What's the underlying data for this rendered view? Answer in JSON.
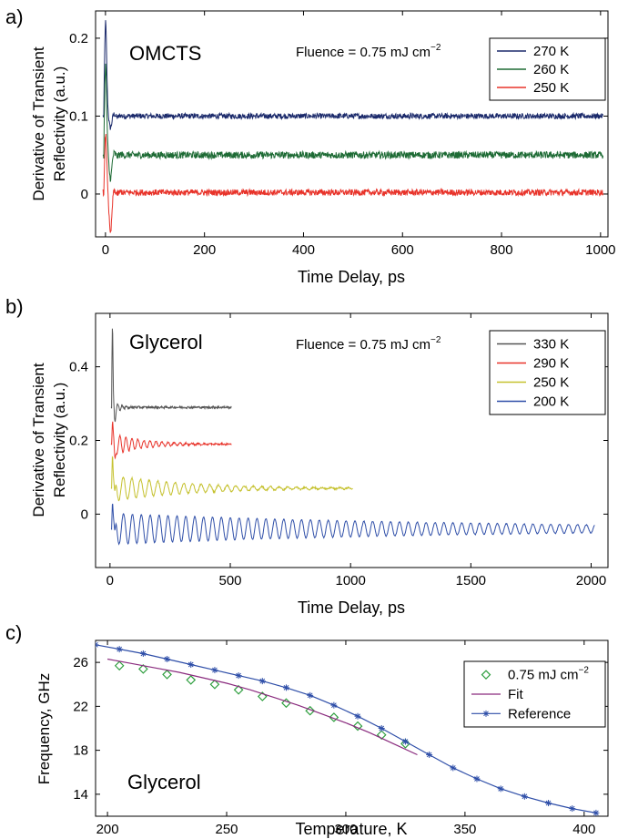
{
  "chart_data": [
    {
      "panel_label": "a)",
      "type": "line",
      "annotation_sample": "OMCTS",
      "annotation_fluence": "Fluence = 0.75 mJ cm",
      "annotation_fluence_exp": "−2",
      "xlabel": "Time Delay, ps",
      "ylabel": [
        "Derivative  of Transient",
        "Reflectivity  (a.u.)"
      ],
      "xlim": [
        -20,
        1015
      ],
      "ylim": [
        -0.055,
        0.235
      ],
      "xticks": [
        0,
        200,
        400,
        600,
        800,
        1000
      ],
      "yticks": [
        0,
        0.1,
        0.2
      ],
      "ytick_labels": [
        "0",
        "0.1",
        "0.2"
      ],
      "legend_position": "top-right",
      "series": [
        {
          "name": "270 K",
          "color": "#1b2a6b",
          "baseline": 0.1,
          "xstart": -5,
          "xend": 1005,
          "peak": 0.22,
          "trough": 0.09,
          "osc_amp": 0.012,
          "period": 14,
          "decay": 12,
          "noise": 0.0035
        },
        {
          "name": "260 K",
          "color": "#1e6b35",
          "baseline": 0.05,
          "xstart": -5,
          "xend": 1005,
          "peak": 0.165,
          "trough": 0.025,
          "osc_amp": 0.012,
          "period": 14,
          "decay": 12,
          "noise": 0.0045
        },
        {
          "name": "250 K",
          "color": "#e8332a",
          "baseline": 0.002,
          "xstart": -5,
          "xend": 1005,
          "peak": 0.075,
          "trough": -0.045,
          "osc_amp": 0.014,
          "period": 14,
          "decay": 12,
          "noise": 0.004
        }
      ]
    },
    {
      "panel_label": "b)",
      "type": "line",
      "annotation_sample": "Glycerol",
      "annotation_fluence": "Fluence = 0.75 mJ cm",
      "annotation_fluence_exp": "−2",
      "xlabel": "Time Delay, ps",
      "ylabel": [
        "Derivative  of Transient",
        "Reflectivity  (a.u.)"
      ],
      "xlim": [
        -60,
        2070
      ],
      "ylim": [
        -0.145,
        0.545
      ],
      "xticks": [
        0,
        500,
        1000,
        1500,
        2000
      ],
      "yticks": [
        0,
        0.2,
        0.4
      ],
      "ytick_labels": [
        "0",
        "0.2",
        "0.4"
      ],
      "legend_position": "top-right",
      "series": [
        {
          "name": "330 K",
          "color": "#555555",
          "baseline": 0.29,
          "xstart": 5,
          "xend": 505,
          "peak": 0.51,
          "trough": 0.26,
          "osc_amp": 0.018,
          "period": 18,
          "decay": 35,
          "noise": 0.003
        },
        {
          "name": "290 K",
          "color": "#e8332a",
          "baseline": 0.19,
          "xstart": 5,
          "xend": 505,
          "peak": 0.25,
          "trough": 0.14,
          "osc_amp": 0.03,
          "period": 25,
          "decay": 130,
          "noise": 0.002
        },
        {
          "name": "250 K",
          "color": "#c5c12e",
          "baseline": 0.07,
          "xstart": 5,
          "xend": 1010,
          "peak": 0.16,
          "trough": 0.03,
          "osc_amp": 0.035,
          "period": 36,
          "decay": 330,
          "noise": 0.002
        },
        {
          "name": "200 K",
          "color": "#2e4ea8",
          "baseline": -0.04,
          "xstart": 5,
          "xend": 2015,
          "peak": 0.03,
          "trough": -0.085,
          "osc_amp": 0.042,
          "period": 37,
          "decay": 1500,
          "noise": 0.001
        }
      ]
    },
    {
      "panel_label": "c)",
      "type": "scatter",
      "annotation_sample": "Glycerol",
      "xlabel": "Temperature, K",
      "ylabel": [
        "Frequency, GHz"
      ],
      "xlim": [
        195,
        410
      ],
      "ylim": [
        12,
        28
      ],
      "xticks": [
        200,
        250,
        300,
        350,
        400
      ],
      "yticks": [
        14,
        18,
        22,
        26
      ],
      "legend_position": "top-right",
      "series": [
        {
          "name": "0.75 mJ cm",
          "name_exp": "−2",
          "kind": "markers",
          "marker": "diamond",
          "color": "#2e9e3e",
          "x": [
            205,
            215,
            225,
            235,
            245,
            255,
            265,
            275,
            285,
            295,
            305,
            315,
            325
          ],
          "y": [
            25.7,
            25.4,
            24.9,
            24.4,
            24.0,
            23.5,
            22.9,
            22.3,
            21.6,
            21.0,
            20.2,
            19.4,
            18.6
          ]
        },
        {
          "name": "Fit",
          "kind": "line",
          "color": "#8a2b7e",
          "x": [
            200,
            210,
            220,
            230,
            240,
            250,
            260,
            270,
            280,
            290,
            300,
            310,
            320,
            330
          ],
          "y": [
            26.3,
            25.9,
            25.5,
            25.1,
            24.6,
            24.1,
            23.5,
            22.8,
            22.1,
            21.3,
            20.5,
            19.6,
            18.6,
            17.6
          ]
        },
        {
          "name": "Reference",
          "kind": "line-markers",
          "marker": "star",
          "color": "#2e4ea8",
          "x": [
            195,
            205,
            215,
            225,
            235,
            245,
            255,
            265,
            275,
            285,
            295,
            305,
            315,
            325,
            335,
            345,
            355,
            365,
            375,
            385,
            395,
            405
          ],
          "y": [
            27.6,
            27.2,
            26.8,
            26.3,
            25.8,
            25.3,
            24.8,
            24.3,
            23.7,
            23.0,
            22.1,
            21.1,
            20.0,
            18.8,
            17.6,
            16.4,
            15.4,
            14.5,
            13.8,
            13.2,
            12.7,
            12.3
          ]
        }
      ]
    }
  ]
}
